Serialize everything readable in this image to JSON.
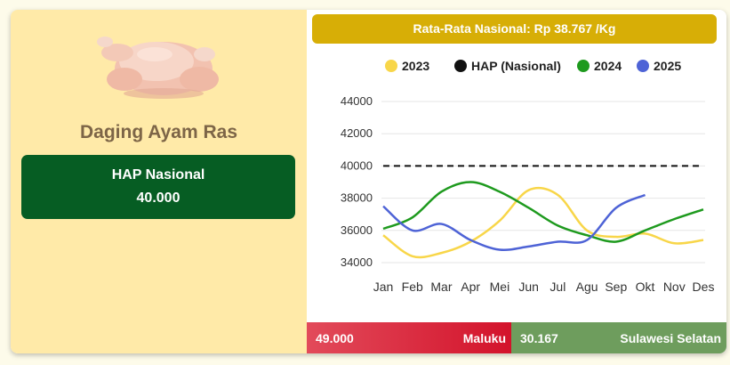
{
  "commodity": {
    "name": "Daging Ayam Ras",
    "image_icon": "raw-chicken-icon"
  },
  "hap": {
    "label": "HAP Nasional",
    "value": "40.000"
  },
  "average": {
    "text": "Rata-Rata Nasional: Rp 38.767 /Kg"
  },
  "colors": {
    "panel_left": "#ffeaa8",
    "hap_green": "#065d23",
    "avg_gold": "#d7ae06",
    "highest_red": "#d3132b",
    "lowest_green": "#6e9d5d"
  },
  "highest": {
    "value": "49.000",
    "province": "Maluku"
  },
  "lowest": {
    "value": "30.167",
    "province": "Sulawesi Selatan"
  },
  "chart_data": {
    "type": "line",
    "categories": [
      "Jan",
      "Feb",
      "Mar",
      "Apr",
      "Mei",
      "Jun",
      "Jul",
      "Agu",
      "Sep",
      "Okt",
      "Nov",
      "Des"
    ],
    "ylim": [
      34000,
      44000
    ],
    "yticks": [
      "34000",
      "36000",
      "38000",
      "40000",
      "42000",
      "44000"
    ],
    "grid": true,
    "legend_position": "top",
    "series": [
      {
        "name": "2023",
        "color": "#f8d649",
        "style": "solid",
        "values": [
          35700,
          34400,
          34600,
          35300,
          36600,
          38500,
          38200,
          36000,
          35600,
          35800,
          35200,
          35400
        ]
      },
      {
        "name": "HAP (Nasional)",
        "color": "#111111",
        "style": "dashed",
        "values": [
          40000,
          40000,
          40000,
          40000,
          40000,
          40000,
          40000,
          40000,
          40000,
          40000,
          40000,
          40000
        ]
      },
      {
        "name": "2024",
        "color": "#1e9a1e",
        "style": "solid",
        "values": [
          36100,
          36800,
          38400,
          39000,
          38400,
          37400,
          36300,
          35700,
          35300,
          36000,
          36700,
          37300
        ]
      },
      {
        "name": "2025",
        "color": "#4e63d6",
        "style": "solid",
        "values": [
          37500,
          36000,
          36400,
          35400,
          34800,
          35000,
          35300,
          35400,
          37400,
          38200,
          null,
          null
        ]
      }
    ]
  }
}
